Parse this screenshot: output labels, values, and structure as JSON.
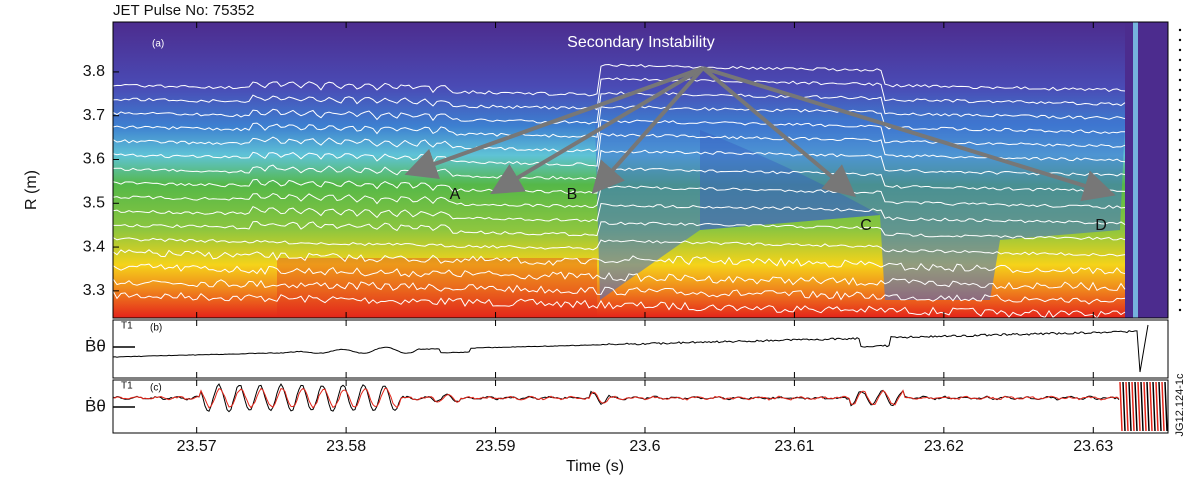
{
  "chart_data": {
    "type": "contour-with-traces",
    "title": "JET Pulse No: 75352",
    "x_label": "Time (s)",
    "y_label": "R (m)",
    "xlim": [
      23.5644,
      23.635
    ],
    "xticks": [
      23.57,
      23.58,
      23.59,
      23.6,
      23.61,
      23.62,
      23.63
    ],
    "ylim": [
      3.238,
      3.914
    ],
    "yticks": [
      3.3,
      3.4,
      3.5,
      3.6,
      3.7,
      3.8
    ],
    "panels": [
      {
        "tag": "(a)",
        "annotation": "Secondary Instability",
        "markers": [
          "A",
          "B",
          "C",
          "D"
        ]
      },
      {
        "tag": "(b)",
        "probe": "T1",
        "y_label": "Ḃθ"
      },
      {
        "tag": "(c)",
        "probe": "T1",
        "y_label": "Ḃθ"
      }
    ],
    "figure_id": "JG12.124-1c"
  }
}
